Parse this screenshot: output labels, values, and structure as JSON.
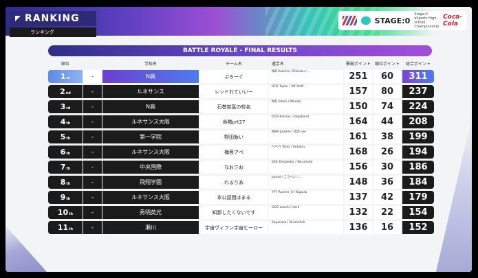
{
  "header": {
    "title": "RANKING",
    "subtitle": "ランキング",
    "stage_label": "STAGE:0",
    "sponsor_small": "Stage:0 eSports High-school Championship",
    "sponsor_brand": "Coca-Cola"
  },
  "banner": "BATTLE ROYALE - FINAL RESULTS",
  "columns": {
    "rank": "順位",
    "school": "学校名",
    "team": "チーム名",
    "players": "選手名",
    "kill_points": "撃破ポイント",
    "placement_points": "順位ポイント",
    "total_points": "総合ポイント"
  },
  "colors": {
    "accent_purple": "#6846c6",
    "row_dark": "#1b1b1b",
    "first_blue": "#5d8ae8"
  },
  "rows": [
    {
      "rank": "1",
      "suffix": "st",
      "dash": "-",
      "school": "N高",
      "team": "ぷろーぐ",
      "players": "N高 Kazuha / Shimizu / ...",
      "kills": "251",
      "placement": "60",
      "total": "311"
    },
    {
      "rank": "2",
      "suffix": "nd",
      "dash": "-",
      "school": "ルネサンス",
      "team": "レッドれていいー",
      "players": "RED Taylor / NY Shift",
      "kills": "157",
      "placement": "80",
      "total": "237"
    },
    {
      "rank": "3",
      "suffix": "rd",
      "dash": "-",
      "school": "N高",
      "team": "石巻若葉の校名",
      "players": "N高 Hikari / Wasabi",
      "kills": "150",
      "placement": "74",
      "total": "224"
    },
    {
      "rank": "4",
      "suffix": "th",
      "dash": "-",
      "school": "ルネサンス大阪",
      "team": "命賭prt27",
      "players": "OOS Kansas / Vagabond",
      "kills": "164",
      "placement": "44",
      "total": "208"
    },
    {
      "rank": "5",
      "suffix": "th",
      "dash": "-",
      "school": "第一学院",
      "team": "野田飯い",
      "players": "NNN gazelle / DDF ver",
      "kills": "161",
      "placement": "38",
      "total": "199"
    },
    {
      "rank": "6",
      "suffix": "th",
      "dash": "-",
      "school": "ルネサンス大阪",
      "team": "桶菩アペ",
      "players": "ペペペ Tarka / Kotatsu",
      "kills": "168",
      "placement": "26",
      "total": "194"
    },
    {
      "rank": "7",
      "suffix": "th",
      "dash": "-",
      "school": "中央国際",
      "team": "なおさお",
      "players": "SSS Zealander / Naruhodo",
      "kills": "156",
      "placement": "30",
      "total": "186"
    },
    {
      "rank": "8",
      "suffix": "th",
      "dash": "-",
      "school": "飛翔学園",
      "team": "れるりあ",
      "players": "parrot / こうへい / ...",
      "kills": "148",
      "placement": "36",
      "total": "184"
    },
    {
      "rank": "9",
      "suffix": "th",
      "dash": "-",
      "school": "ルネサンス大阪",
      "team": "本公認間はまる",
      "players": "YYY Runner_0 / Kagura",
      "kills": "137",
      "placement": "42",
      "total": "179"
    },
    {
      "rank": "10",
      "suffix": "th",
      "dash": "-",
      "school": "秀明英光",
      "team": "知那したくないです",
      "players": "GGG zasshi / dark",
      "kills": "132",
      "placement": "22",
      "total": "154"
    },
    {
      "rank": "11",
      "suffix": "th",
      "dash": "-",
      "school": "瀬川",
      "team": "宇宙ヴィラン宇宙ヒーロー",
      "players": "Sayonara / Drumstick",
      "kills": "136",
      "placement": "16",
      "total": "152"
    }
  ]
}
